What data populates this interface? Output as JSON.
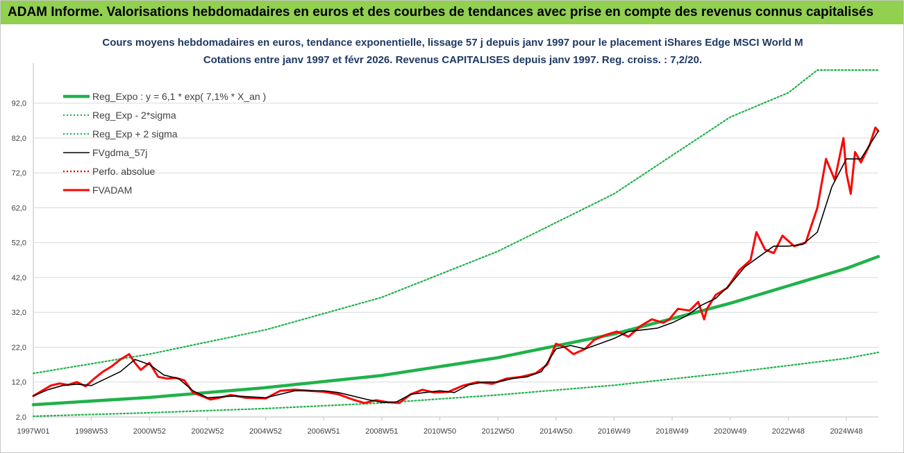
{
  "banner": {
    "title": "ADAM Informe. Valorisations hebdomadaires en euros et des courbes de tendances avec prise en compte des revenus connus capitalisés",
    "color": "#92d050"
  },
  "chart_data": {
    "type": "line",
    "title_line1": "Cours moyens hebdomadaires en euros, tendance exponentielle, lissage 57 j depuis janv 1997  pour le placement iShares Edge MSCI World M",
    "title_line2": "Cotations entre janv 1997 et févr 2026. Revenus CAPITALISES depuis janv 1997. Reg. croiss. : 7,2/20.",
    "ylim": [
      2.0,
      101.5
    ],
    "yticks": [
      "2,0",
      "12,0",
      "22,0",
      "32,0",
      "42,0",
      "52,0",
      "62,0",
      "72,0",
      "82,0",
      "92,0"
    ],
    "ytick_values": [
      2,
      12,
      22,
      32,
      42,
      52,
      62,
      72,
      82,
      92
    ],
    "xlim": [
      1997.0,
      2026.1
    ],
    "xticks": [
      "1997W01",
      "1998W53",
      "2000W52",
      "2002W52",
      "2004W52",
      "2006W51",
      "2008W51",
      "2010W50",
      "2012W50",
      "2014W50",
      "2016W49",
      "2018W49",
      "2020W49",
      "2022W48",
      "2024W48"
    ],
    "xtick_values": [
      1997.0,
      1999.0,
      2001.0,
      2003.0,
      2005.0,
      2007.0,
      2009.0,
      2011.0,
      2013.0,
      2015.0,
      2017.0,
      2019.0,
      2021.0,
      2023.0,
      2025.0
    ],
    "grid": true,
    "legend_position": "top-left",
    "series": [
      {
        "name": "Reg_Expo : y = 6,1 * exp( 7,1% *  X_an )",
        "color": "#1fb24a",
        "style": "solid-thick",
        "x": [
          1997.0,
          2001.0,
          2005.0,
          2009.0,
          2013.0,
          2017.0,
          2021.0,
          2025.0,
          2026.1
        ],
        "y": [
          5.5,
          7.6,
          10.4,
          13.9,
          19.0,
          25.8,
          34.6,
          44.6,
          48.0
        ]
      },
      {
        "name": "Reg_Exp - 2*sigma",
        "color": "#1fb24a",
        "style": "dotted",
        "x": [
          1997.0,
          2001.0,
          2005.0,
          2009.0,
          2013.0,
          2017.0,
          2021.0,
          2025.0,
          2026.1
        ],
        "y": [
          2.2,
          3.2,
          4.4,
          6.0,
          8.3,
          11.1,
          14.7,
          18.8,
          20.5
        ]
      },
      {
        "name": "Reg_Exp + 2 sigma",
        "color": "#1fb24a",
        "style": "dotted",
        "x": [
          1997.0,
          2001.0,
          2005.0,
          2009.0,
          2013.0,
          2017.0,
          2021.0,
          2023.0,
          2024.0,
          2026.1
        ],
        "y": [
          14.5,
          20.0,
          27.0,
          36.3,
          49.5,
          66.0,
          88.0,
          95.0,
          101.5,
          101.5
        ]
      },
      {
        "name": "FVgdma_57j",
        "color": "#000000",
        "style": "solid",
        "x": [
          1997.0,
          1997.5,
          1998.0,
          1998.5,
          1999.0,
          1999.5,
          2000.0,
          2000.5,
          2001.0,
          2001.5,
          2002.0,
          2002.5,
          2003.0,
          2003.5,
          2004.0,
          2005.0,
          2006.0,
          2007.0,
          2007.5,
          2008.0,
          2008.5,
          2009.0,
          2009.5,
          2010.0,
          2010.5,
          2011.0,
          2011.5,
          2012.0,
          2012.5,
          2013.0,
          2013.5,
          2014.0,
          2014.5,
          2015.0,
          2015.5,
          2016.0,
          2016.5,
          2017.0,
          2017.5,
          2018.0,
          2018.5,
          2019.0,
          2019.5,
          2020.0,
          2020.5,
          2021.0,
          2021.5,
          2022.0,
          2022.5,
          2023.0,
          2023.5,
          2024.0,
          2024.5,
          2025.0,
          2025.5,
          2026.1
        ],
        "y": [
          8.0,
          9.8,
          11.0,
          11.4,
          11.0,
          13.0,
          15.0,
          18.5,
          17.0,
          14.0,
          13.0,
          9.5,
          7.5,
          7.8,
          8.0,
          7.5,
          9.5,
          9.5,
          9.0,
          8.0,
          7.0,
          6.2,
          6.3,
          8.5,
          9.0,
          9.5,
          9.0,
          11.2,
          12.0,
          12.0,
          13.0,
          13.5,
          15.0,
          21.5,
          22.5,
          21.5,
          23.0,
          24.5,
          26.5,
          27.0,
          27.5,
          29.0,
          31.0,
          34.0,
          36.0,
          40.0,
          45.0,
          48.0,
          51.0,
          51.0,
          51.5,
          55.0,
          68.0,
          76.0,
          76.0,
          84.0
        ]
      },
      {
        "name": "Perfo. absolue",
        "color": "#e00000",
        "style": "dotted",
        "x": [],
        "y": []
      },
      {
        "name": "FVADAM",
        "color": "#ff0000",
        "style": "solid-thick",
        "x": [
          1997.0,
          1997.3,
          1997.6,
          1997.9,
          1998.2,
          1998.5,
          1998.8,
          1999.1,
          1999.4,
          1999.7,
          2000.0,
          2000.3,
          2000.5,
          2000.7,
          2001.0,
          2001.3,
          2001.6,
          2001.9,
          2002.2,
          2002.5,
          2002.8,
          2003.1,
          2003.4,
          2003.8,
          2004.3,
          2005.0,
          2005.5,
          2006.0,
          2006.5,
          2007.0,
          2007.5,
          2008.0,
          2008.4,
          2008.8,
          2009.2,
          2009.6,
          2010.0,
          2010.4,
          2010.8,
          2011.3,
          2011.8,
          2012.3,
          2012.8,
          2013.3,
          2013.8,
          2014.3,
          2014.7,
          2015.0,
          2015.3,
          2015.6,
          2016.0,
          2016.3,
          2016.7,
          2017.1,
          2017.5,
          2017.9,
          2018.3,
          2018.7,
          2018.9,
          2019.2,
          2019.6,
          2019.9,
          2020.1,
          2020.2,
          2020.5,
          2020.9,
          2021.3,
          2021.7,
          2021.9,
          2022.2,
          2022.5,
          2022.8,
          2023.2,
          2023.6,
          2024.0,
          2024.3,
          2024.6,
          2024.9,
          2025.0,
          2025.15,
          2025.3,
          2025.5,
          2025.8,
          2026.0,
          2026.1
        ],
        "y": [
          8.0,
          9.5,
          11.0,
          11.6,
          11.2,
          12.0,
          10.8,
          13.0,
          15.0,
          16.5,
          18.5,
          20.0,
          17.5,
          15.5,
          17.5,
          13.5,
          13.0,
          13.2,
          12.5,
          9.0,
          8.0,
          7.0,
          7.5,
          8.3,
          7.5,
          7.3,
          9.5,
          9.8,
          9.5,
          9.2,
          8.5,
          7.0,
          6.0,
          6.8,
          6.2,
          6.0,
          8.5,
          9.8,
          9.0,
          9.2,
          11.0,
          12.0,
          11.5,
          13.0,
          13.5,
          14.5,
          17.0,
          23.0,
          22.0,
          20.0,
          21.5,
          24.0,
          25.5,
          26.5,
          25.0,
          28.0,
          30.0,
          29.0,
          30.0,
          33.0,
          32.5,
          35.0,
          30.0,
          33.0,
          37.0,
          39.0,
          44.0,
          47.0,
          55.0,
          50.0,
          49.0,
          54.0,
          51.0,
          52.0,
          62.0,
          76.0,
          70.0,
          82.0,
          72.0,
          66.0,
          78.0,
          75.0,
          80.0,
          85.0,
          84.0
        ]
      }
    ]
  }
}
